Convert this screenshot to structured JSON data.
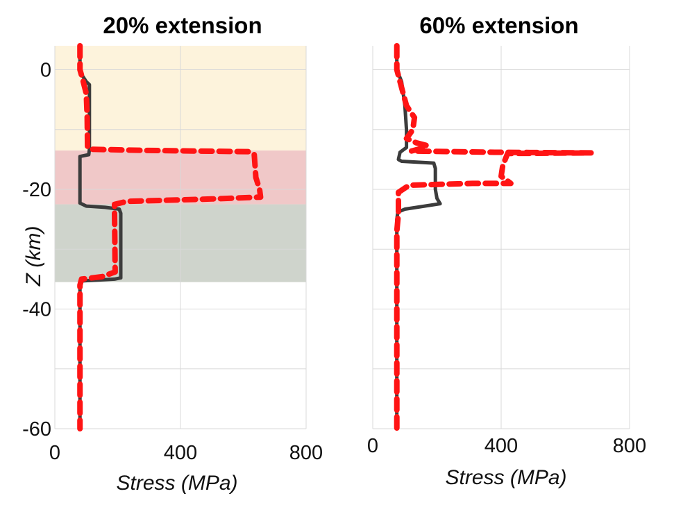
{
  "chart_data": [
    {
      "type": "line",
      "title": "20% extension",
      "xlabel": "Stress (MPa)",
      "ylabel": "Z (km)",
      "xlim": [
        0,
        800
      ],
      "ylim": [
        -60,
        4
      ],
      "xticks": [
        0,
        400,
        800
      ],
      "yticks": [
        0,
        -20,
        -40,
        -60
      ],
      "grid": true,
      "layers": [
        {
          "from": 4,
          "to": -13.5,
          "color": "#fdf3dc"
        },
        {
          "from": -13.5,
          "to": -22.5,
          "color": "#f0c8c8"
        },
        {
          "from": -22.5,
          "to": -35.5,
          "color": "#cfd4cc"
        }
      ],
      "series": [
        {
          "color": "#3c3c3c",
          "style": "solid",
          "points": [
            [
              80,
              4
            ],
            [
              80,
              0.5
            ],
            [
              85,
              -0.8
            ],
            [
              100,
              -2
            ],
            [
              110,
              -2.5
            ],
            [
              110,
              -13.3
            ],
            [
              108,
              -14.2
            ],
            [
              80,
              -14.5
            ],
            [
              80,
              -22.3
            ],
            [
              100,
              -22.8
            ],
            [
              160,
              -23
            ],
            [
              205,
              -23.3
            ],
            [
              210,
              -24
            ],
            [
              210,
              -34.8
            ],
            [
              190,
              -35
            ],
            [
              85,
              -35.3
            ],
            [
              80,
              -35.8
            ],
            [
              80,
              -60
            ]
          ]
        },
        {
          "color": "#ff1414",
          "style": "dashed",
          "points": [
            [
              80,
              4
            ],
            [
              80,
              0
            ],
            [
              88,
              -1.5
            ],
            [
              100,
              -4
            ],
            [
              103,
              -8
            ],
            [
              104,
              -12.8
            ],
            [
              110,
              -13.3
            ],
            [
              300,
              -13.5
            ],
            [
              620,
              -13.7
            ],
            [
              635,
              -14.2
            ],
            [
              640,
              -18
            ],
            [
              652,
              -20
            ],
            [
              655,
              -21.3
            ],
            [
              500,
              -21.6
            ],
            [
              230,
              -22
            ],
            [
              190,
              -22.5
            ],
            [
              190,
              -24
            ],
            [
              192,
              -33.8
            ],
            [
              150,
              -34.6
            ],
            [
              85,
              -35
            ],
            [
              80,
              -36
            ],
            [
              80,
              -60
            ]
          ]
        }
      ]
    },
    {
      "type": "line",
      "title": "60% extension",
      "xlabel": "Stress (MPa)",
      "ylabel": "",
      "xlim": [
        0,
        800
      ],
      "ylim": [
        -60,
        4
      ],
      "xticks": [
        0,
        400,
        800
      ],
      "yticks": [],
      "grid": true,
      "series": [
        {
          "color": "#3c3c3c",
          "style": "solid",
          "points": [
            [
              75,
              4
            ],
            [
              75,
              0
            ],
            [
              90,
              -2
            ],
            [
              100,
              -6
            ],
            [
              105,
              -10
            ],
            [
              105,
              -13
            ],
            [
              85,
              -13.8
            ],
            [
              80,
              -15
            ],
            [
              90,
              -15.3
            ],
            [
              190,
              -15.6
            ],
            [
              195,
              -16.5
            ],
            [
              195,
              -20
            ],
            [
              200,
              -21.5
            ],
            [
              210,
              -22.4
            ],
            [
              100,
              -23.3
            ],
            [
              78,
              -23.8
            ],
            [
              75,
              -25
            ],
            [
              75,
              -60
            ]
          ]
        },
        {
          "color": "#ff1414",
          "style": "dashed",
          "points": [
            [
              75,
              4
            ],
            [
              75,
              0
            ],
            [
              90,
              -3
            ],
            [
              105,
              -6
            ],
            [
              130,
              -8
            ],
            [
              125,
              -10
            ],
            [
              105,
              -11.5
            ],
            [
              135,
              -12.2
            ],
            [
              170,
              -12.7
            ],
            [
              155,
              -13.1
            ],
            [
              120,
              -13.6
            ],
            [
              380,
              -13.8
            ],
            [
              680,
              -13.9
            ],
            [
              420,
              -14
            ],
            [
              405,
              -16
            ],
            [
              400,
              -17.8
            ],
            [
              430,
              -19
            ],
            [
              310,
              -19
            ],
            [
              115,
              -19.3
            ],
            [
              105,
              -19.6
            ],
            [
              80,
              -20.5
            ],
            [
              80,
              -24
            ],
            [
              75,
              -27
            ],
            [
              75,
              -60
            ]
          ]
        }
      ]
    }
  ]
}
